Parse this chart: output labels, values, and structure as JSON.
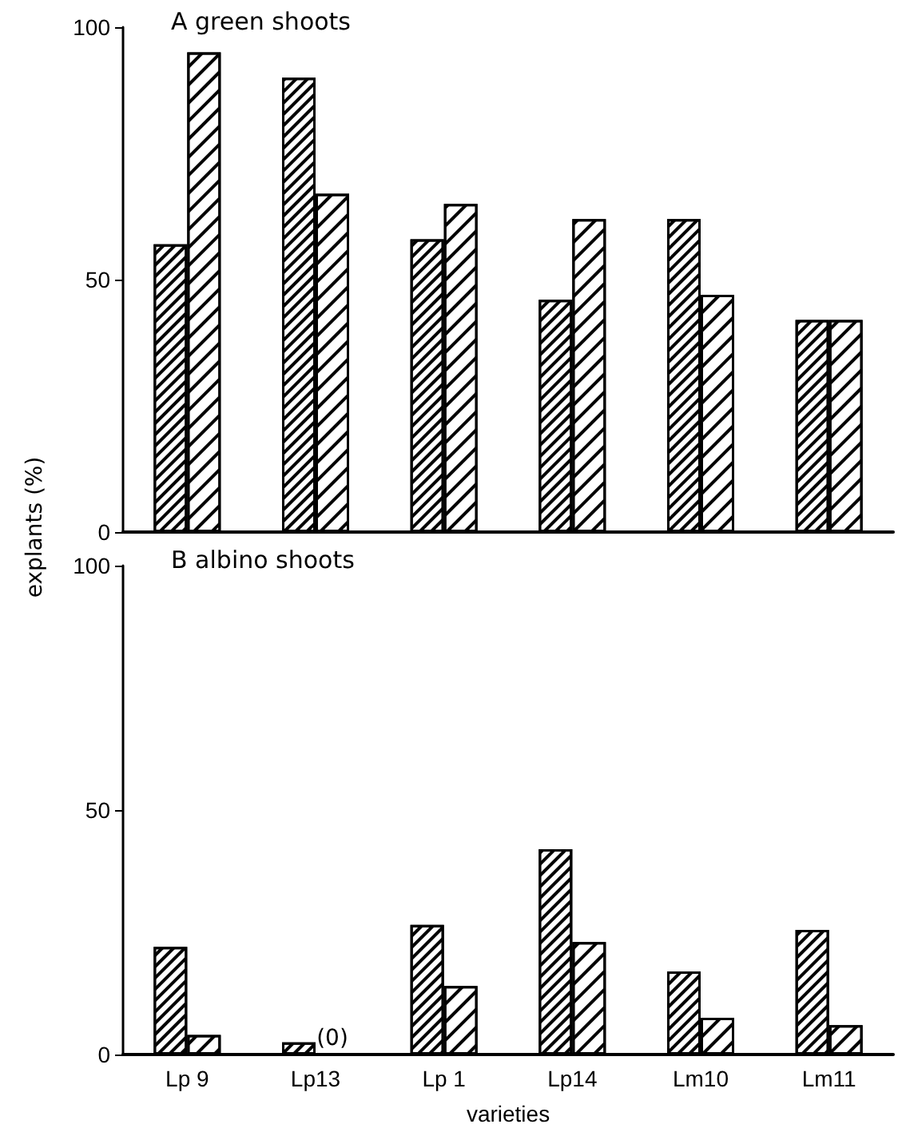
{
  "chart_data": [
    {
      "type": "bar",
      "title": "A green shoots",
      "ylabel": "explants (%)",
      "categories": [
        null,
        null,
        null,
        null,
        null,
        null
      ],
      "series": [
        {
          "color": "#000000",
          "values": [
            57,
            90,
            58,
            46,
            62,
            42
          ]
        },
        {
          "color": "#000000",
          "values": [
            95,
            67,
            65,
            62,
            47,
            42
          ]
        }
      ],
      "ylim": [
        0,
        100
      ],
      "yticks": [
        0,
        50,
        100
      ],
      "tick_labels": "y"
    },
    {
      "type": "bar",
      "title": "B albino shoots",
      "xlabel": "varieties",
      "categories": [
        "Lp 9",
        "Lp13",
        "Lp 1",
        "Lp14",
        "Lm10",
        "Lm11"
      ],
      "series": [
        {
          "color": "#000000",
          "values": [
            22,
            2.5,
            26.5,
            42,
            17,
            25.5
          ]
        },
        {
          "color": "#000000",
          "values": [
            4,
            0,
            14,
            23,
            7.5,
            6
          ]
        }
      ],
      "ylim": [
        0,
        100
      ],
      "yticks": [
        0,
        50,
        100
      ],
      "annotations": [
        {
          "text": "(0)",
          "x": "Lp13",
          "y": 0
        }
      ]
    }
  ]
}
